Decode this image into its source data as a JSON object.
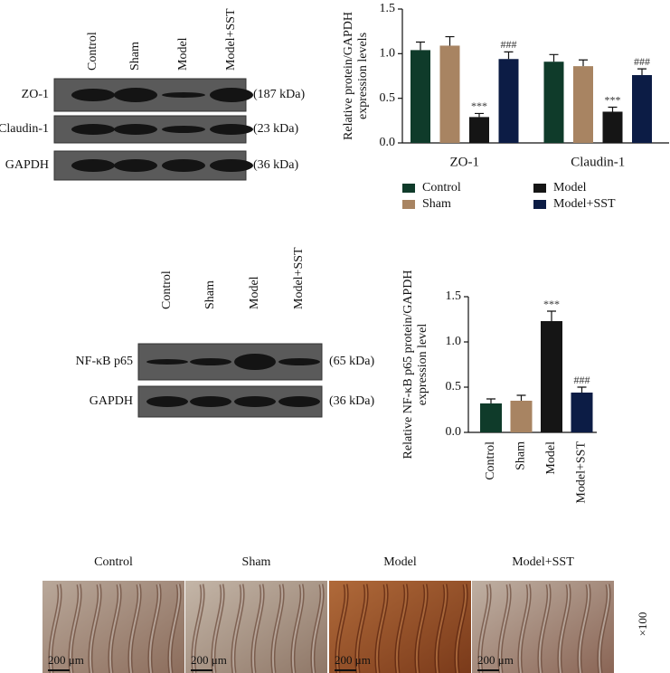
{
  "blot_a": {
    "lanes": [
      "Control",
      "Sham",
      "Model",
      "Model+SST"
    ],
    "rows": [
      {
        "label": "ZO-1",
        "size": "(187 kDa)"
      },
      {
        "label": "Claudin-1",
        "size": "(23 kDa)"
      },
      {
        "label": "GAPDH",
        "size": "(36 kDa)"
      }
    ]
  },
  "blot_b": {
    "lanes": [
      "Control",
      "Sham",
      "Model",
      "Model+SST"
    ],
    "rows": [
      {
        "label": "NF-κB p65",
        "size": "(65 kDa)"
      },
      {
        "label": "GAPDH",
        "size": "(36 kDa)"
      }
    ]
  },
  "chart_data": [
    {
      "type": "grouped_bar",
      "ylabel": [
        "Relative protein/GAPDH",
        "expression levels"
      ],
      "categories": [
        "ZO-1",
        "Claudin-1"
      ],
      "ylim": [
        0,
        1.5
      ],
      "yticks": [
        {
          "value": 0,
          "label": "0.0"
        },
        0.5,
        {
          "value": 1,
          "label": "1.0"
        },
        1.5
      ],
      "series": [
        {
          "name": "Control",
          "color": "#0f3b2a",
          "values": [
            1.04,
            0.91
          ],
          "errors": [
            0.09,
            0.08
          ]
        },
        {
          "name": "Sham",
          "color": "#a88462",
          "values": [
            1.09,
            0.86
          ],
          "errors": [
            0.1,
            0.07
          ]
        },
        {
          "name": "Model",
          "color": "#151515",
          "values": [
            0.29,
            0.35
          ],
          "errors": [
            0.04,
            0.05
          ],
          "labels": [
            "***",
            "***"
          ]
        },
        {
          "name": "Model+SST",
          "color": "#0c1c45",
          "values": [
            0.94,
            0.76
          ],
          "errors": [
            0.08,
            0.07
          ],
          "labels": [
            "###",
            "###"
          ]
        }
      ]
    },
    {
      "type": "bar",
      "ylabel": [
        "Relative NF-κB p65 protein/GAPDH",
        "expression level"
      ],
      "categories": [
        "Control",
        "Sham",
        "Model",
        "Model+SST"
      ],
      "values": [
        0.32,
        0.35,
        1.23,
        0.44
      ],
      "errors": [
        0.05,
        0.06,
        0.11,
        0.06
      ],
      "labels": [
        null,
        null,
        "***",
        "###"
      ],
      "colors": [
        "#0f3b2a",
        "#a88462",
        "#151515",
        "#0c1c45"
      ],
      "ylim": [
        0,
        1.5
      ],
      "yticks": [
        {
          "value": 0,
          "label": "0.0"
        },
        0.5,
        {
          "value": 1,
          "label": "1.0"
        },
        1.5
      ]
    }
  ],
  "histology": {
    "panels": [
      "Control",
      "Sham",
      "Model",
      "Model+SST"
    ],
    "scale": "200 μm",
    "magnification": "×100"
  }
}
